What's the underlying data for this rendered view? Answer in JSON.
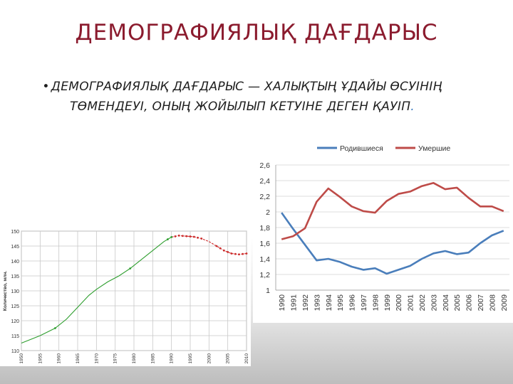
{
  "slide": {
    "title": "ДЕМОГРАФИЯЛЫҚ ДАҒДАРЫС",
    "bullet_main": "ДЕМОГРАФИЯЛЫҚ ДАҒДАРЫС — ХАЛЫҚТЫҢ ҰДАЙЫ ӨСУІНІҢ ТӨМЕНДЕУІ, ОНЫҢ ЖОЙЫЛЫП КЕТУІНЕ ДЕГЕН ҚАУІП",
    "bullet_end": "."
  },
  "chart_data": [
    {
      "type": "line",
      "ylabel": "Количество, млн.",
      "xlim": [
        1950,
        2010
      ],
      "ylim": [
        110,
        150
      ],
      "x_ticks": [
        1950,
        1955,
        1960,
        1965,
        1970,
        1975,
        1980,
        1985,
        1990,
        1995,
        2000,
        2005,
        2010
      ],
      "y_ticks": [
        110,
        115,
        120,
        125,
        130,
        135,
        140,
        145,
        150
      ],
      "grid": true,
      "series": [
        {
          "color": "#2e9e2e",
          "x": [
            1950,
            1955,
            1959,
            1962,
            1965,
            1968,
            1970,
            1973,
            1976,
            1979,
            1982,
            1985,
            1988,
            1990
          ],
          "y": [
            112.5,
            115.0,
            117.5,
            120.5,
            124.5,
            128.5,
            130.5,
            133.0,
            135.0,
            137.5,
            140.5,
            143.5,
            146.5,
            148.0
          ]
        },
        {
          "color": "#cc2a2a",
          "x": [
            1990,
            1992,
            1994,
            1996,
            1998,
            2000,
            2002,
            2004,
            2006,
            2008,
            2010
          ],
          "y": [
            148.0,
            148.5,
            148.3,
            148.1,
            147.5,
            146.5,
            145.0,
            143.5,
            142.5,
            142.2,
            142.5
          ]
        }
      ],
      "markers_x": [
        1959,
        1979,
        1989,
        1990,
        1991,
        1992,
        1993,
        1994,
        1995,
        1996,
        1997,
        1998,
        2002,
        2003,
        2004,
        2005,
        2006,
        2007,
        2008,
        2009,
        2010
      ]
    },
    {
      "type": "line",
      "x": [
        1990,
        1991,
        1992,
        1993,
        1994,
        1995,
        1996,
        1997,
        1998,
        1999,
        2000,
        2001,
        2002,
        2003,
        2004,
        2005,
        2006,
        2007,
        2008,
        2009
      ],
      "ylim": [
        1,
        2.6
      ],
      "y_ticks": [
        "1",
        "1,2",
        "1,4",
        "1,6",
        "1,8",
        "2",
        "2,2",
        "2,4",
        "2,6"
      ],
      "grid": true,
      "legend_position": "top",
      "series": [
        {
          "name": "Родившиеся",
          "color": "#4a7ebb",
          "values": [
            1.99,
            1.78,
            1.58,
            1.38,
            1.4,
            1.36,
            1.3,
            1.26,
            1.28,
            1.21,
            1.26,
            1.31,
            1.4,
            1.47,
            1.5,
            1.46,
            1.48,
            1.6,
            1.7,
            1.76
          ]
        },
        {
          "name": "Умершие",
          "color": "#be4b48",
          "values": [
            1.65,
            1.69,
            1.79,
            2.13,
            2.3,
            2.19,
            2.07,
            2.01,
            1.99,
            2.14,
            2.23,
            2.26,
            2.33,
            2.37,
            2.29,
            2.31,
            2.18,
            2.07,
            2.07,
            2.01
          ]
        }
      ]
    }
  ]
}
